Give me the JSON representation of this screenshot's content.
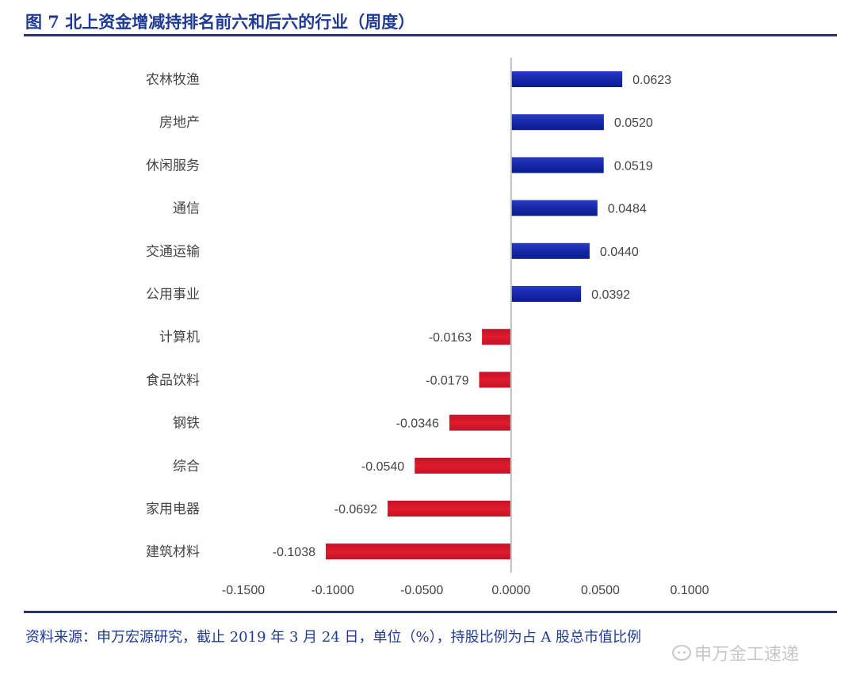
{
  "figure": {
    "title": "图 7  北上资金增减持排名前六和后六的行业（周度）",
    "source": "资料来源：申万宏源研究，截止 2019 年 3 月 24 日，单位（%），持股比例为占 A 股总市值比例",
    "watermark": "申万金工速递"
  },
  "colors": {
    "positive": "#1428a8",
    "negative": "#e01b2b",
    "axis": "#bfbfbf",
    "label": "#444444",
    "accent": "#1f3a93"
  },
  "chart_data": {
    "type": "bar",
    "orientation": "horizontal",
    "categories": [
      "农林牧渔",
      "房地产",
      "休闲服务",
      "通信",
      "交通运输",
      "公用事业",
      "计算机",
      "食品饮料",
      "钢铁",
      "综合",
      "家用电器",
      "建筑材料"
    ],
    "values": [
      0.0623,
      0.052,
      0.0519,
      0.0484,
      0.044,
      0.0392,
      -0.0163,
      -0.0179,
      -0.0346,
      -0.054,
      -0.0692,
      -0.1038
    ],
    "value_labels": [
      "0.0623",
      "0.0520",
      "0.0519",
      "0.0484",
      "0.0440",
      "0.0392",
      "-0.0163",
      "-0.0179",
      "-0.0346",
      "-0.0540",
      "-0.0692",
      "-0.1038"
    ],
    "xlim": [
      -0.15,
      0.1
    ],
    "xticks": [
      -0.15,
      -0.1,
      -0.05,
      0,
      0.05,
      0.1
    ],
    "xtick_labels": [
      "-0.1500",
      "-0.1000",
      "-0.0500",
      "0.0000",
      "0.0500",
      "0.1000"
    ],
    "xlabel": "",
    "ylabel": "",
    "grid": false,
    "legend": "none"
  }
}
